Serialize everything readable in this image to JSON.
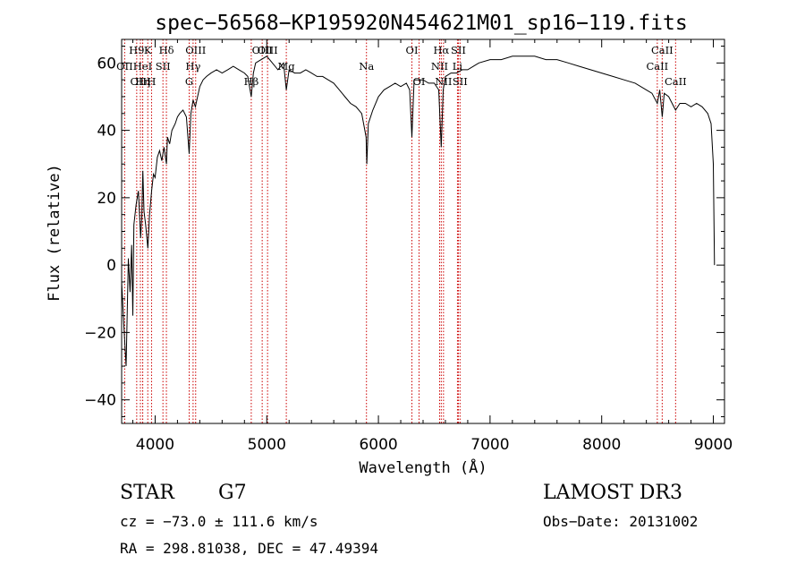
{
  "chart_data": {
    "type": "line",
    "title": "spec−56568−KP195920N454621M01_sp16−119.fits",
    "xlabel": "Wavelength (Å)",
    "ylabel": "Flux (relative)",
    "xlim": [
      3700,
      9100
    ],
    "ylim": [
      -47,
      67
    ],
    "xticks": [
      4000,
      5000,
      6000,
      7000,
      8000,
      9000
    ],
    "xtick_labels": [
      "4000",
      "5000",
      "6000",
      "7000",
      "8000",
      "9000"
    ],
    "yticks": [
      -40,
      -20,
      0,
      20,
      40,
      60
    ],
    "ytick_labels": [
      "−40",
      "−20",
      "0",
      "20",
      "40",
      "60"
    ],
    "grid": false,
    "line_color": "#000000",
    "marker_color": "#cc0000",
    "series": [
      {
        "x": [
          3700,
          3720,
          3740,
          3760,
          3775,
          3790,
          3800,
          3810,
          3830,
          3850,
          3860,
          3870,
          3880,
          3890,
          3900,
          3915,
          3935,
          3950,
          3968,
          3985,
          4000,
          4020,
          4040,
          4060,
          4080,
          4101,
          4110,
          4130,
          4150,
          4180,
          4200,
          4220,
          4250,
          4280,
          4305,
          4320,
          4340,
          4360,
          4380,
          4400,
          4430,
          4460,
          4500,
          4550,
          4600,
          4650,
          4700,
          4750,
          4800,
          4830,
          4861,
          4880,
          4900,
          4950,
          5000,
          5050,
          5100,
          5150,
          5175,
          5200,
          5250,
          5300,
          5350,
          5400,
          5450,
          5500,
          5550,
          5600,
          5650,
          5700,
          5750,
          5800,
          5850,
          5890,
          5896,
          5910,
          5950,
          6000,
          6050,
          6100,
          6150,
          6200,
          6250,
          6280,
          6300,
          6320,
          6350,
          6400,
          6450,
          6500,
          6540,
          6563,
          6580,
          6600,
          6650,
          6700,
          6750,
          6800,
          6850,
          6900,
          7000,
          7100,
          7200,
          7300,
          7400,
          7500,
          7600,
          7700,
          7800,
          7900,
          8000,
          8100,
          8200,
          8300,
          8400,
          8450,
          8498,
          8520,
          8542,
          8560,
          8600,
          8662,
          8700,
          8750,
          8800,
          8850,
          8900,
          8950,
          8980,
          9000,
          9010
        ],
        "y": [
          -5,
          -18,
          -30,
          2,
          -8,
          6,
          -15,
          12,
          18,
          22,
          15,
          8,
          14,
          28,
          16,
          12,
          5,
          15,
          22,
          27,
          26,
          32,
          34,
          31,
          35,
          30,
          38,
          36,
          40,
          42,
          44,
          45,
          46,
          44,
          33,
          45,
          49,
          47,
          50,
          53,
          55,
          56,
          57,
          58,
          57,
          58,
          59,
          58,
          57,
          56,
          50,
          57,
          60,
          61,
          62,
          60,
          58,
          60,
          52,
          58,
          57,
          57,
          58,
          57,
          56,
          56,
          55,
          54,
          52,
          50,
          48,
          47,
          45,
          38,
          30,
          42,
          46,
          50,
          52,
          53,
          54,
          53,
          54,
          52,
          38,
          55,
          55,
          55,
          54,
          54,
          52,
          35,
          52,
          56,
          57,
          57,
          58,
          58,
          59,
          60,
          61,
          61,
          62,
          62,
          62,
          61,
          61,
          60,
          59,
          58,
          57,
          56,
          55,
          54,
          52,
          51,
          48,
          52,
          44,
          51,
          50,
          46,
          48,
          48,
          47,
          48,
          47,
          45,
          42,
          30,
          0
        ]
      }
    ],
    "lines": [
      {
        "label": "H9",
        "wave": 3835
      },
      {
        "label": "K",
        "wave": 3934
      },
      {
        "label": "Hδ",
        "wave": 4101
      },
      {
        "label": "OII",
        "wave": 3727
      },
      {
        "label": "HeI",
        "wave": 3888
      },
      {
        "label": "SII",
        "wave": 4070
      },
      {
        "label": "OIII",
        "wave": 3868
      },
      {
        "label": "Hη",
        "wave": 3889
      },
      {
        "label": "H",
        "wave": 3968
      },
      {
        "label": "OIII",
        "wave": 4363
      },
      {
        "label": "Hγ",
        "wave": 4340
      },
      {
        "label": "G",
        "wave": 4305
      },
      {
        "label": "OIII",
        "wave": 5007
      },
      {
        "label": "Mg",
        "wave": 5175
      },
      {
        "label": "Hβ",
        "wave": 4861
      },
      {
        "label": "OIII",
        "wave": 4959
      },
      {
        "label": "Na",
        "wave": 5893
      },
      {
        "label": "OI",
        "wave": 6300
      },
      {
        "label": "OI",
        "wave": 6364
      },
      {
        "label": "Hα",
        "wave": 6563
      },
      {
        "label": "SII",
        "wave": 6716
      },
      {
        "label": "NII",
        "wave": 6548
      },
      {
        "label": "NII",
        "wave": 6583
      },
      {
        "label": "SII",
        "wave": 6731
      },
      {
        "label": "Li",
        "wave": 6708
      },
      {
        "label": "CaII",
        "wave": 8542
      },
      {
        "label": "CaII",
        "wave": 8498
      },
      {
        "label": "CaII",
        "wave": 8662
      }
    ]
  },
  "info": {
    "classification": "STAR",
    "subclass": "G7",
    "survey": "LAMOST DR3",
    "redshift": "cz = −73.0 ± 111.6 km/s",
    "obs_date": "Obs−Date: 20131002",
    "coords": "RA = 298.81038, DEC =  47.49394"
  }
}
